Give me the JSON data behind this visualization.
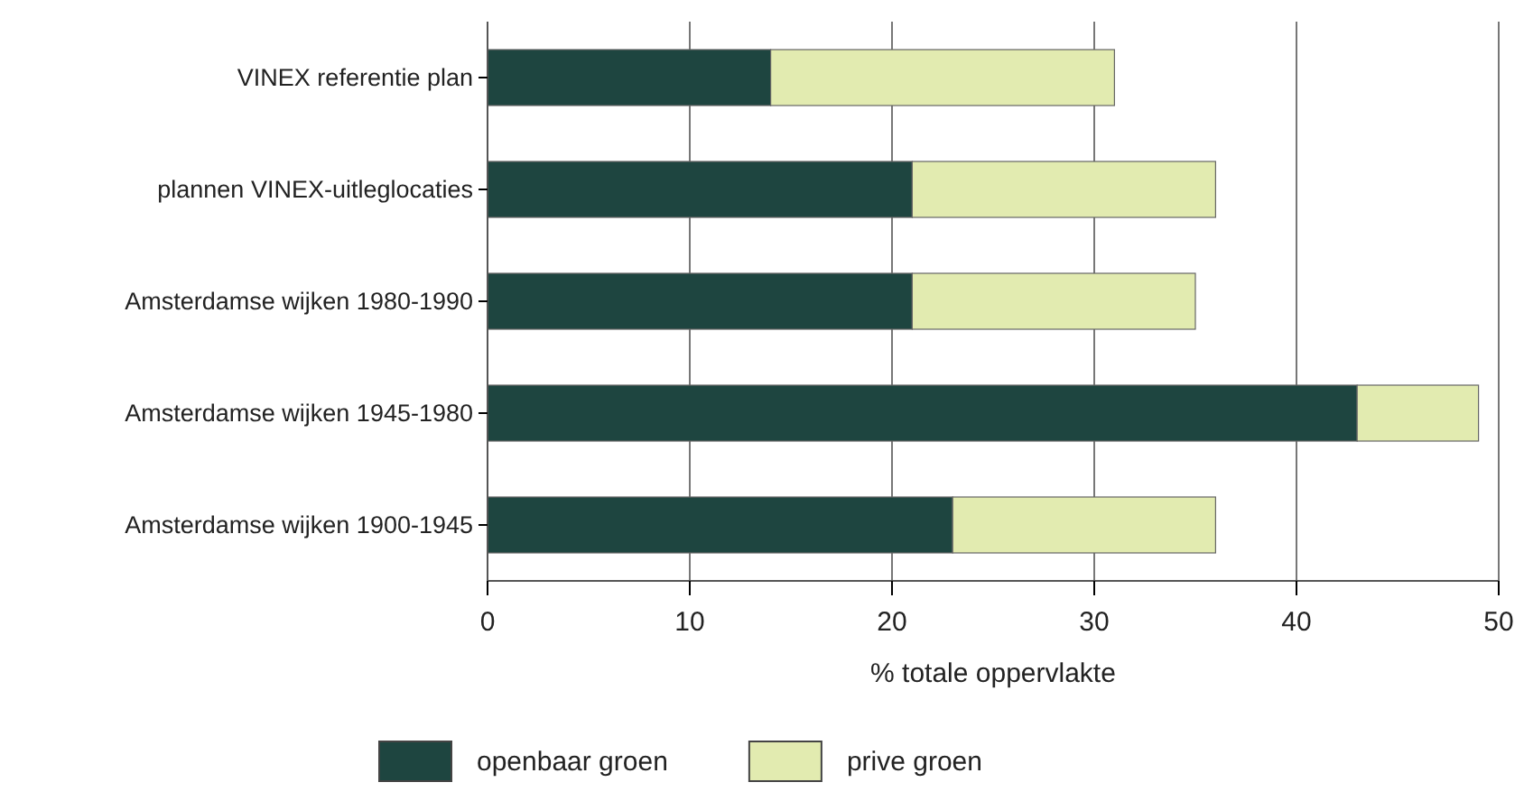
{
  "chart_data": {
    "type": "bar",
    "orientation": "horizontal",
    "stacked": true,
    "xlabel": "% totale oppervlakte",
    "categories": [
      "VINEX referentie plan",
      "plannen VINEX-uitleglocaties",
      "Amsterdamse wijken 1980-1990",
      "Amsterdamse wijken 1945-1980",
      "Amsterdamse wijken 1900-1945"
    ],
    "series": [
      {
        "name": "openbaar groen",
        "color": "#1e4540",
        "values": [
          14,
          21,
          21,
          43,
          23
        ]
      },
      {
        "name": "prive groen",
        "color": "#e2ebb0",
        "values": [
          17,
          15,
          14,
          6,
          13
        ]
      }
    ],
    "xlim": [
      0,
      50
    ],
    "xticks": [
      0,
      10,
      20,
      30,
      40,
      50
    ],
    "grid": "x",
    "legend": "bottom"
  }
}
